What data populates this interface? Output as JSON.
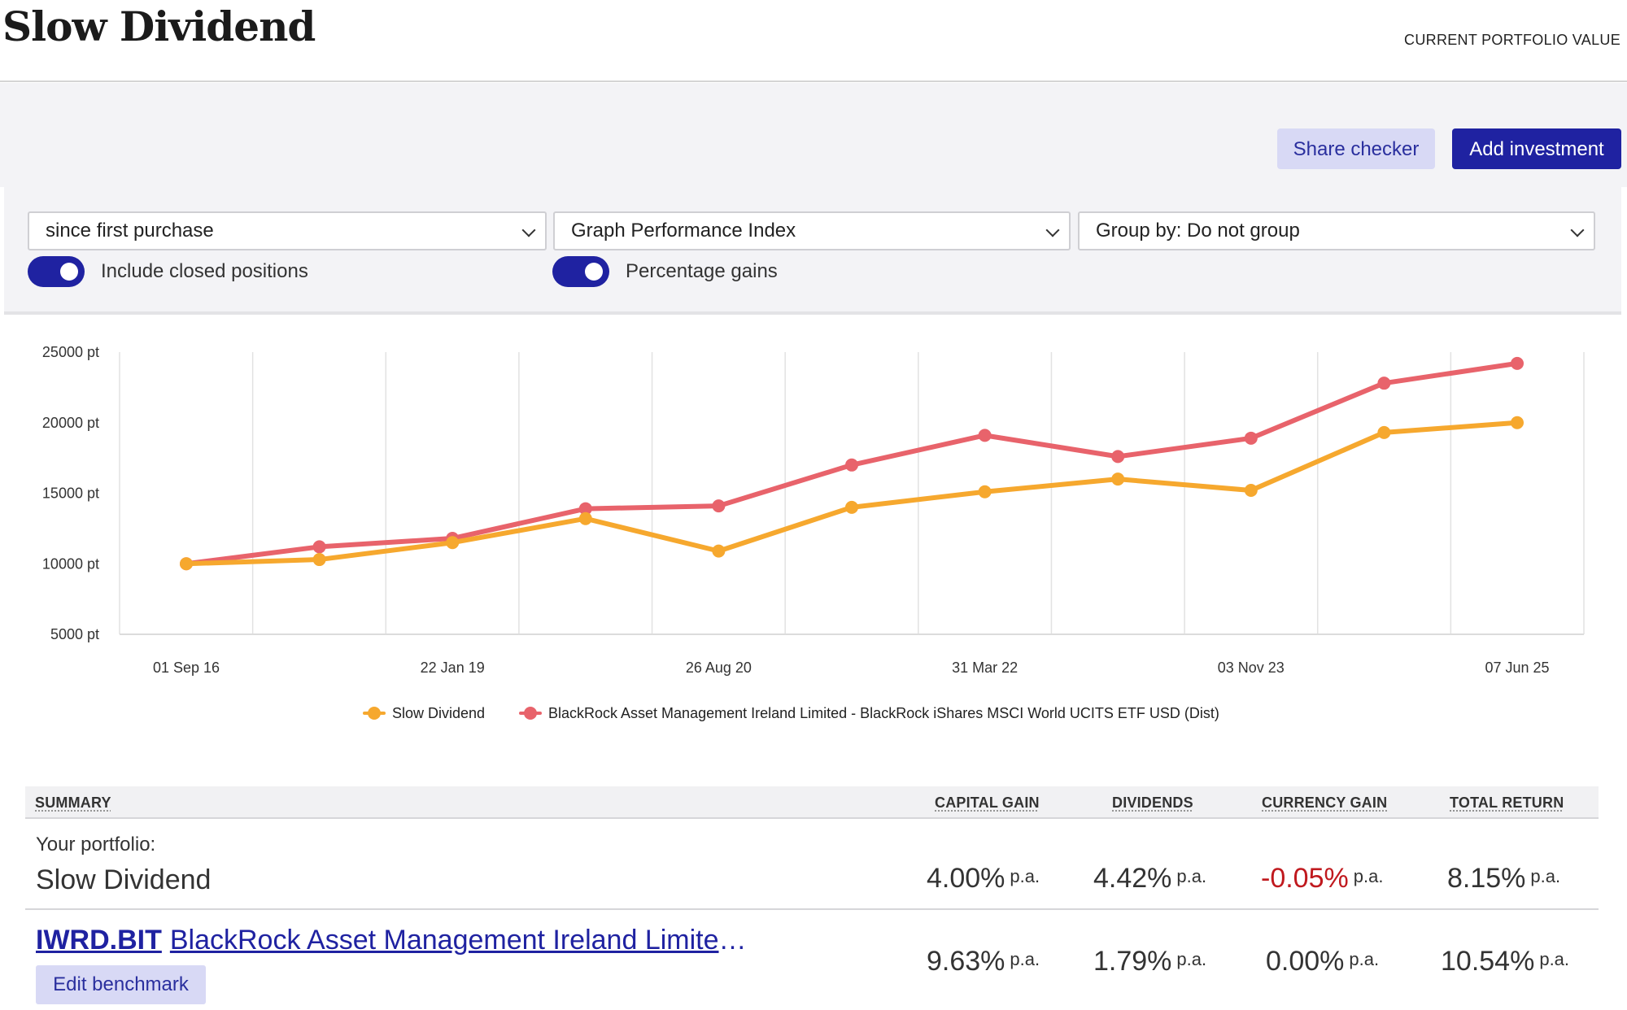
{
  "header": {
    "brand": "Slow Dividend",
    "portfolio_value_label": "CURRENT PORTFOLIO VALUE"
  },
  "actions": {
    "share_checker": "Share checker",
    "add_investment": "Add investment"
  },
  "filters": {
    "period": "since first purchase",
    "graph_type": "Graph Performance Index",
    "group_by": "Group by: Do not group",
    "include_closed_label": "Include closed positions",
    "include_closed_on": true,
    "percentage_gains_label": "Percentage gains",
    "percentage_gains_on": true
  },
  "colors": {
    "primary": "#1f22a1",
    "primary_light": "#d8d9f5",
    "series_portfolio": "#f6a82e",
    "series_benchmark": "#e8636b",
    "negative": "#c0191e"
  },
  "chart_data": {
    "type": "line",
    "x_tick_labels": [
      "01 Sep 16",
      "22 Jan 19",
      "26 Aug 20",
      "31 Mar 22",
      "03 Nov 23",
      "07 Jun 25"
    ],
    "y_tick_labels": [
      "25000 pt",
      "20000 pt",
      "15000 pt",
      "10000 pt",
      "5000 pt"
    ],
    "ylim": [
      5000,
      25000
    ],
    "grid": true,
    "legend_placement": "bottom",
    "series": [
      {
        "name": "Slow Dividend",
        "color": "#f6a82e",
        "values": [
          10000,
          10300,
          11500,
          13200,
          10900,
          14000,
          15100,
          16000,
          15200,
          19300,
          20000
        ]
      },
      {
        "name": "BlackRock Asset Management Ireland Limited - BlackRock iShares MSCI World UCITS ETF USD (Dist)",
        "color": "#e8636b",
        "values": [
          10000,
          11200,
          11800,
          13900,
          14100,
          17000,
          19100,
          17600,
          18900,
          22800,
          24200
        ]
      }
    ]
  },
  "summary": {
    "headers": {
      "summary": "SUMMARY",
      "capital_gain": "CAPITAL GAIN",
      "dividends": "DIVIDENDS",
      "currency_gain": "CURRENCY GAIN",
      "total_return": "TOTAL RETURN"
    },
    "per_annum": "p.a.",
    "portfolio_row": {
      "label": "Your portfolio:",
      "name": "Slow Dividend",
      "capital_gain": "4.00%",
      "dividends": "4.42%",
      "currency_gain": "-0.05%",
      "total_return": "8.15%"
    },
    "benchmark_row": {
      "ticker": "IWRD.BIT",
      "name": "BlackRock Asset Management Ireland Limited -…",
      "capital_gain": "9.63%",
      "dividends": "1.79%",
      "currency_gain": "0.00%",
      "total_return": "10.54%",
      "edit_label": "Edit benchmark"
    }
  }
}
